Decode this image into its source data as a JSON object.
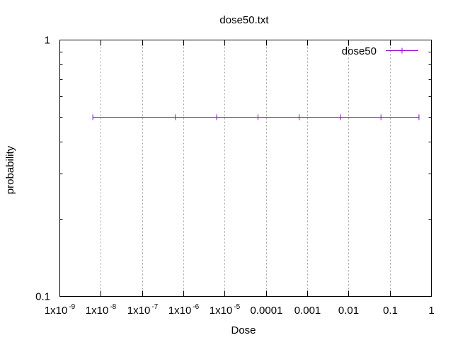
{
  "chart_data": {
    "type": "line",
    "title": "dose50.txt",
    "xlabel": "Dose",
    "ylabel": "probability",
    "x_scale": "log",
    "y_scale": "log",
    "xlim": [
      1e-09,
      1
    ],
    "ylim": [
      0.1,
      1
    ],
    "grid": {
      "x": true,
      "y": false
    },
    "legend_position": "top-right",
    "x_ticks": [
      {
        "value": 1e-09,
        "mantissa": "1x10",
        "exponent": "-9"
      },
      {
        "value": 1e-08,
        "mantissa": "1x10",
        "exponent": "-8"
      },
      {
        "value": 1e-07,
        "mantissa": "1x10",
        "exponent": "-7"
      },
      {
        "value": 1e-06,
        "mantissa": "1x10",
        "exponent": "-6"
      },
      {
        "value": 1e-05,
        "mantissa": "1x10",
        "exponent": "-5"
      },
      {
        "value": 0.0001,
        "mantissa": "0.0001",
        "exponent": ""
      },
      {
        "value": 0.001,
        "mantissa": "0.001",
        "exponent": ""
      },
      {
        "value": 0.01,
        "mantissa": "0.01",
        "exponent": ""
      },
      {
        "value": 0.1,
        "mantissa": "0.1",
        "exponent": ""
      },
      {
        "value": 1,
        "mantissa": "1",
        "exponent": ""
      }
    ],
    "y_ticks": [
      {
        "value": 1,
        "label": "1"
      },
      {
        "value": 0.1,
        "label": "0.1"
      }
    ],
    "series": [
      {
        "name": "dose50",
        "color": "#9400d3",
        "x": [
          6.3e-09,
          6.3e-07,
          6.3e-06,
          6.3e-05,
          0.00063,
          0.0063,
          0.06,
          0.5
        ],
        "y": [
          0.5,
          0.5,
          0.5,
          0.5,
          0.5,
          0.5,
          0.5,
          0.5
        ]
      }
    ]
  }
}
